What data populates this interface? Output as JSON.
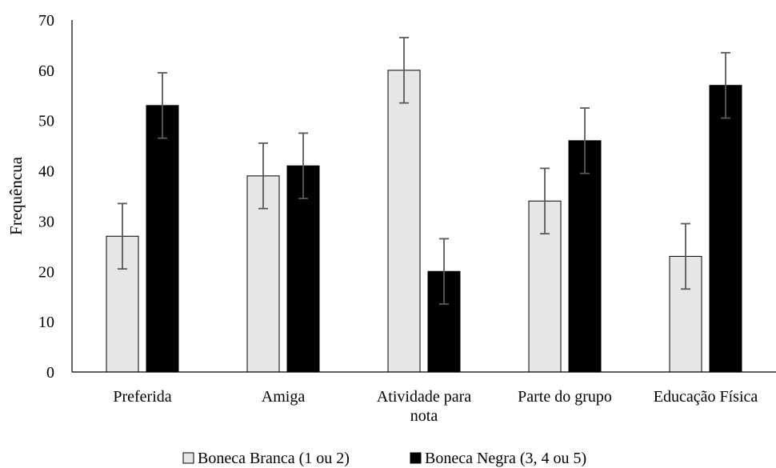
{
  "chart_data": {
    "type": "bar",
    "title": "",
    "xlabel": "",
    "ylabel": "Frequêncua",
    "ylim": [
      0,
      70
    ],
    "yticks": [
      0,
      10,
      20,
      30,
      40,
      50,
      60,
      70
    ],
    "grid": false,
    "legend_position": "bottom",
    "categories": [
      "Preferida",
      "Amiga",
      "Atividade para nota",
      "Parte do grupo",
      "Educação Física"
    ],
    "category_lines": [
      [
        "Preferida"
      ],
      [
        "Amiga"
      ],
      [
        "Atividade para",
        "nota"
      ],
      [
        "Parte do grupo"
      ],
      [
        "Educação Física"
      ]
    ],
    "error_bar": 6.5,
    "series": [
      {
        "name": "Boneca Branca (1 ou 2)",
        "values": [
          27,
          39,
          60,
          34,
          23
        ],
        "color": "#e7e6e6",
        "stroke": "#000000"
      },
      {
        "name": "Boneca Negra (3, 4 ou 5)",
        "values": [
          53,
          41,
          20,
          46,
          57
        ],
        "color": "#000000",
        "stroke": "#000000"
      }
    ],
    "errorbar_color": "#595959"
  }
}
